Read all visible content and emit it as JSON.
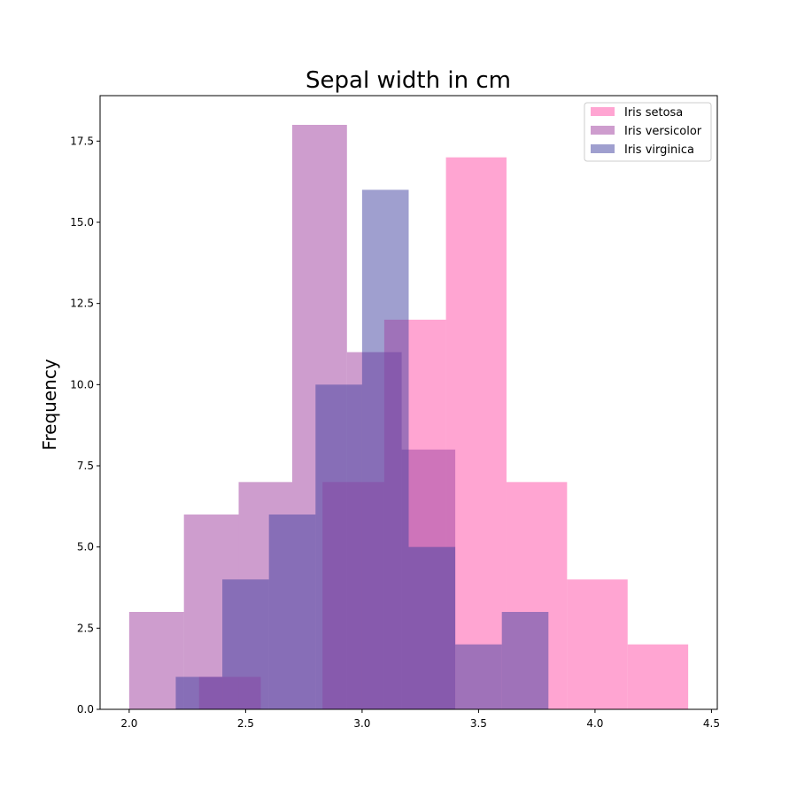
{
  "chart_data": {
    "type": "bar",
    "subtype": "histogram-overlay",
    "title": "Sepal width in cm",
    "xlabel": "",
    "ylabel": "Frequency",
    "xlim": [
      1.875,
      4.525
    ],
    "ylim": [
      0,
      18.9
    ],
    "xticks": [
      "2.0",
      "2.5",
      "3.0",
      "3.5",
      "4.0",
      "4.5"
    ],
    "yticks": [
      "0.0",
      "2.5",
      "5.0",
      "7.5",
      "10.0",
      "12.5",
      "15.0",
      "17.5"
    ],
    "grid": false,
    "legend_position": "top-right",
    "series": [
      {
        "name": "Iris setosa",
        "color": "#ff69b4",
        "alpha": 0.6,
        "bins": [
          {
            "x0": 2.3,
            "x1": 2.565,
            "count": 1
          },
          {
            "x0": 2.565,
            "x1": 2.83,
            "count": 0
          },
          {
            "x0": 2.83,
            "x1": 3.095,
            "count": 7
          },
          {
            "x0": 3.095,
            "x1": 3.36,
            "count": 12
          },
          {
            "x0": 3.36,
            "x1": 3.62,
            "count": 17
          },
          {
            "x0": 3.62,
            "x1": 3.88,
            "count": 7
          },
          {
            "x0": 3.88,
            "x1": 4.14,
            "count": 4
          },
          {
            "x0": 4.14,
            "x1": 4.4,
            "count": 2
          }
        ]
      },
      {
        "name": "Iris versicolor",
        "color": "#a64ca6",
        "alpha": 0.55,
        "bins": [
          {
            "x0": 2.0,
            "x1": 2.235,
            "count": 3
          },
          {
            "x0": 2.235,
            "x1": 2.47,
            "count": 6
          },
          {
            "x0": 2.47,
            "x1": 2.7,
            "count": 7
          },
          {
            "x0": 2.7,
            "x1": 2.935,
            "count": 18
          },
          {
            "x0": 2.935,
            "x1": 3.17,
            "count": 11
          },
          {
            "x0": 3.17,
            "x1": 3.4,
            "count": 8
          }
        ]
      },
      {
        "name": "Iris virginica",
        "color": "#3f3f9f",
        "alpha": 0.5,
        "bins": [
          {
            "x0": 2.2,
            "x1": 2.4,
            "count": 1
          },
          {
            "x0": 2.4,
            "x1": 2.6,
            "count": 4
          },
          {
            "x0": 2.6,
            "x1": 2.8,
            "count": 6
          },
          {
            "x0": 2.8,
            "x1": 3.0,
            "count": 10
          },
          {
            "x0": 3.0,
            "x1": 3.2,
            "count": 16
          },
          {
            "x0": 3.2,
            "x1": 3.4,
            "count": 5
          },
          {
            "x0": 3.4,
            "x1": 3.6,
            "count": 2
          },
          {
            "x0": 3.6,
            "x1": 3.8,
            "count": 3
          }
        ]
      }
    ]
  }
}
